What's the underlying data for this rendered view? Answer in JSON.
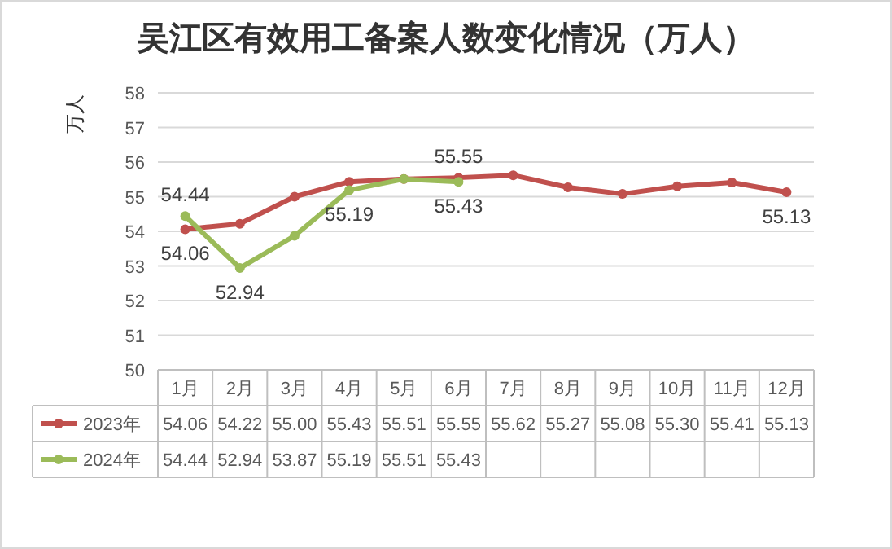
{
  "chart_data": {
    "type": "line",
    "title": "吴江区有效用工备案人数变化情况（万人）",
    "ylabel": "万人",
    "categories": [
      "1月",
      "2月",
      "3月",
      "4月",
      "5月",
      "6月",
      "7月",
      "8月",
      "9月",
      "10月",
      "11月",
      "12月"
    ],
    "series": [
      {
        "name": "2023年",
        "color": "#c0504d",
        "values": [
          54.06,
          54.22,
          55.0,
          55.43,
          55.51,
          55.55,
          55.62,
          55.27,
          55.08,
          55.3,
          55.41,
          55.13
        ],
        "value_labels": [
          "54.06",
          "54.22",
          "55.00",
          "55.43",
          "55.51",
          "55.55",
          "55.62",
          "55.27",
          "55.08",
          "55.30",
          "55.41",
          "55.13"
        ]
      },
      {
        "name": "2024年",
        "color": "#9bbb59",
        "values": [
          54.44,
          52.94,
          53.87,
          55.19,
          55.51,
          55.43,
          null,
          null,
          null,
          null,
          null,
          null
        ],
        "value_labels": [
          "54.44",
          "52.94",
          "53.87",
          "55.19",
          "55.51",
          "55.43",
          null,
          null,
          null,
          null,
          null,
          null
        ]
      }
    ],
    "annotations": [
      {
        "text": "54.44",
        "x": "1月",
        "y": 54.44
      },
      {
        "text": "54.06",
        "x": "1月",
        "y": 54.06
      },
      {
        "text": "52.94",
        "x": "2月",
        "y": 52.94
      },
      {
        "text": "55.19",
        "x": "4月",
        "y": 55.19
      },
      {
        "text": "55.55",
        "x": "6月",
        "y": 55.55
      },
      {
        "text": "55.43",
        "x": "6月",
        "y": 55.43
      },
      {
        "text": "55.13",
        "x": "12月",
        "y": 55.13
      }
    ],
    "ylim": [
      50,
      58
    ],
    "yticks": [
      50,
      51,
      52,
      53,
      54,
      55,
      56,
      57,
      58
    ],
    "grid": "y",
    "legend": "bottom",
    "marker": "circle",
    "line_style": "solid"
  }
}
